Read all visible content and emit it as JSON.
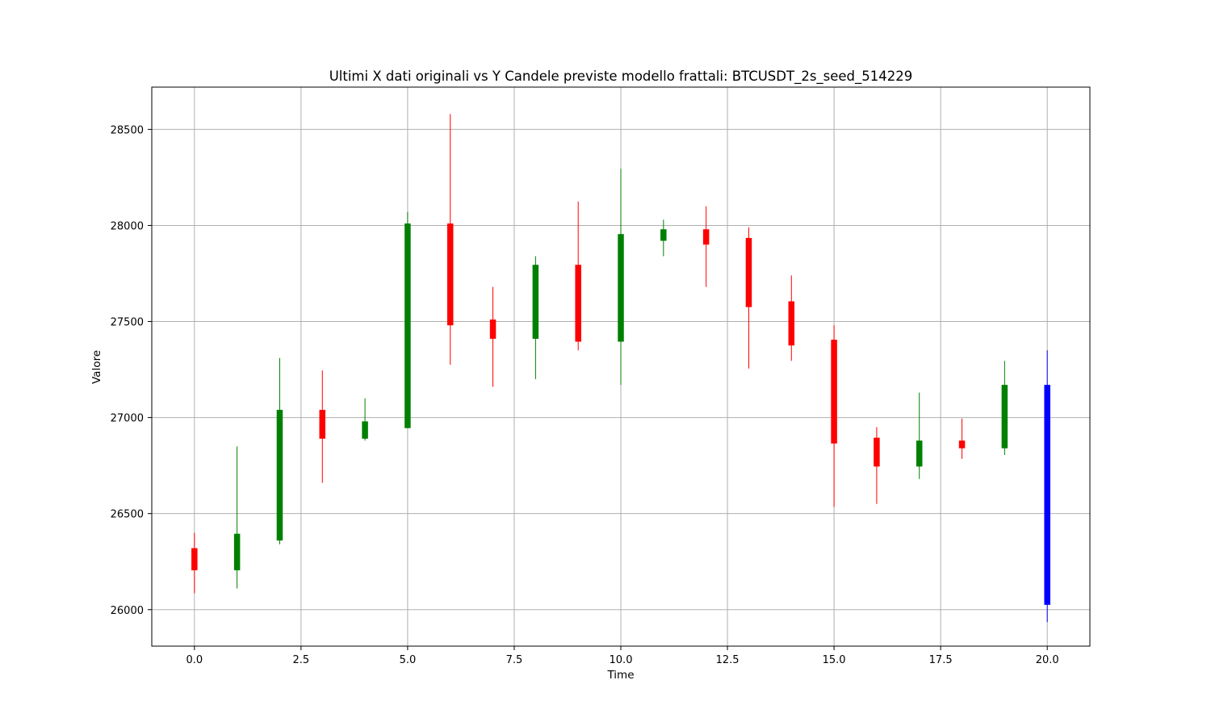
{
  "chart_data": {
    "type": "candlestick",
    "title": "Ultimi X dati originali vs Y Candele previste modello frattali: BTCUSDT_2s_seed_514229",
    "xlabel": "Time",
    "ylabel": "Valore",
    "xlim": [
      -1,
      21
    ],
    "ylim": [
      25810,
      28720
    ],
    "xticks": [
      0.0,
      2.5,
      5.0,
      7.5,
      10.0,
      12.5,
      15.0,
      17.5,
      20.0
    ],
    "xtick_labels": [
      "0.0",
      "2.5",
      "5.0",
      "7.5",
      "10.0",
      "12.5",
      "15.0",
      "17.5",
      "20.0"
    ],
    "yticks": [
      26000,
      26500,
      27000,
      27500,
      28000,
      28500
    ],
    "ytick_labels": [
      "26000",
      "26500",
      "27000",
      "27500",
      "28000",
      "28500"
    ],
    "grid": true,
    "colors": {
      "up": "#008000",
      "down": "#ff0000",
      "predicted": "#0000ff",
      "grid": "#b0b0b0"
    },
    "candles": [
      {
        "t": 0,
        "open": 26320,
        "high": 26400,
        "low": 26085,
        "close": 26205,
        "color": "down"
      },
      {
        "t": 1,
        "open": 26205,
        "high": 26850,
        "low": 26110,
        "close": 26395,
        "color": "up"
      },
      {
        "t": 2,
        "open": 26360,
        "high": 27310,
        "low": 26340,
        "close": 27040,
        "color": "up"
      },
      {
        "t": 3,
        "open": 27040,
        "high": 27245,
        "low": 26660,
        "close": 26890,
        "color": "down"
      },
      {
        "t": 4,
        "open": 26890,
        "high": 27100,
        "low": 26880,
        "close": 26980,
        "color": "up"
      },
      {
        "t": 5,
        "open": 26945,
        "high": 28070,
        "low": 26945,
        "close": 28010,
        "color": "up"
      },
      {
        "t": 6,
        "open": 28010,
        "high": 28580,
        "low": 27275,
        "close": 27480,
        "color": "down"
      },
      {
        "t": 7,
        "open": 27510,
        "high": 27680,
        "low": 27160,
        "close": 27410,
        "color": "down"
      },
      {
        "t": 8,
        "open": 27410,
        "high": 27840,
        "low": 27200,
        "close": 27795,
        "color": "up"
      },
      {
        "t": 9,
        "open": 27795,
        "high": 28125,
        "low": 27350,
        "close": 27395,
        "color": "down"
      },
      {
        "t": 10,
        "open": 27395,
        "high": 28295,
        "low": 27170,
        "close": 27955,
        "color": "up"
      },
      {
        "t": 11,
        "open": 27920,
        "high": 28030,
        "low": 27840,
        "close": 27980,
        "color": "up"
      },
      {
        "t": 12,
        "open": 27980,
        "high": 28100,
        "low": 27680,
        "close": 27900,
        "color": "down"
      },
      {
        "t": 13,
        "open": 27935,
        "high": 27990,
        "low": 27255,
        "close": 27575,
        "color": "down"
      },
      {
        "t": 14,
        "open": 27605,
        "high": 27740,
        "low": 27295,
        "close": 27375,
        "color": "down"
      },
      {
        "t": 15,
        "open": 27405,
        "high": 27480,
        "low": 26535,
        "close": 26865,
        "color": "down"
      },
      {
        "t": 16,
        "open": 26895,
        "high": 26950,
        "low": 26550,
        "close": 26745,
        "color": "down"
      },
      {
        "t": 17,
        "open": 26745,
        "high": 27130,
        "low": 26680,
        "close": 26880,
        "color": "up"
      },
      {
        "t": 18,
        "open": 26880,
        "high": 26995,
        "low": 26785,
        "close": 26840,
        "color": "down"
      },
      {
        "t": 19,
        "open": 26840,
        "high": 27295,
        "low": 26805,
        "close": 27170,
        "color": "up"
      },
      {
        "t": 20,
        "open": 27170,
        "high": 27350,
        "low": 25935,
        "close": 26025,
        "color": "predicted"
      }
    ]
  }
}
